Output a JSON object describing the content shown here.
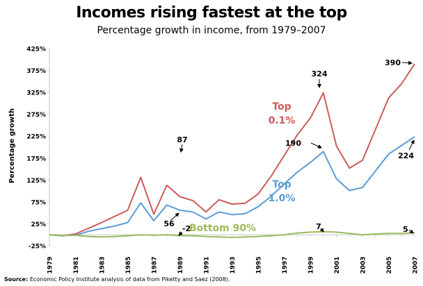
{
  "title": "Incomes rising fastest at the top",
  "subtitle": "Percentage growth in income, from 1979–2007",
  "source_label": "Source:",
  "source_text": "Economic Policy Institute analysis of data from Piketty and Saez (2008).",
  "chart_data": {
    "type": "line",
    "title": "Incomes rising fastest at the top",
    "subtitle": "Percentage growth in income, from 1979–2007",
    "xlabel": "",
    "ylabel": "Percentage growth",
    "ylim": [
      -25,
      425
    ],
    "yticks": [
      "-25%",
      "25%",
      "75%",
      "125%",
      "175%",
      "225%",
      "275%",
      "325%",
      "375%",
      "425%"
    ],
    "ytick_values": [
      -25,
      25,
      75,
      125,
      175,
      225,
      275,
      325,
      375,
      425
    ],
    "xticks": [
      "1979",
      "1981",
      "1983",
      "1985",
      "1987",
      "1989",
      "1991",
      "1993",
      "1995",
      "1997",
      "1999",
      "2001",
      "2003",
      "2005",
      "2007"
    ],
    "x": [
      1979,
      1980,
      1981,
      1982,
      1983,
      1984,
      1985,
      1986,
      1987,
      1988,
      1989,
      1990,
      1991,
      1992,
      1993,
      1994,
      1995,
      1996,
      1997,
      1998,
      1999,
      2000,
      2001,
      2002,
      2003,
      2004,
      2005,
      2006,
      2007
    ],
    "grid": false,
    "series": [
      {
        "name": "Top 0.1%",
        "label_lines": [
          "Top",
          "0.1%"
        ],
        "color": "#cc5a5a",
        "values": [
          0,
          -2,
          2,
          15,
          28,
          42,
          56,
          131,
          47,
          113,
          87,
          78,
          52,
          80,
          70,
          72,
          93,
          134,
          181,
          228,
          266,
          324,
          203,
          152,
          170,
          241,
          312,
          345,
          390
        ]
      },
      {
        "name": "Top 1.0%",
        "label_lines": [
          "Top",
          "1.0%"
        ],
        "color": "#5b9bd5",
        "values": [
          0,
          -2,
          -1,
          8,
          14,
          20,
          28,
          73,
          32,
          68,
          56,
          52,
          36,
          52,
          46,
          48,
          64,
          88,
          116,
          143,
          165,
          190,
          128,
          101,
          108,
          146,
          184,
          204,
          224
        ]
      },
      {
        "name": "Bottom 90%",
        "label_lines": [
          "Bottom 90%"
        ],
        "color": "#9bbb59",
        "values": [
          0,
          -1,
          -1,
          -4,
          -5,
          -4,
          -2,
          0,
          -1,
          0,
          -2,
          -2,
          -4,
          -5,
          -6,
          -5,
          -4,
          -2,
          0,
          4,
          6,
          7,
          6,
          3,
          0,
          2,
          3,
          3,
          5
        ]
      }
    ],
    "annotations": [
      {
        "text": "87",
        "x": 1989,
        "y": 87
      },
      {
        "text": "56",
        "x": 1989,
        "y": 56
      },
      {
        "text": "-2",
        "x": 1989,
        "y": -2
      },
      {
        "text": "324",
        "x": 2000,
        "y": 324
      },
      {
        "text": "190",
        "x": 2000,
        "y": 190
      },
      {
        "text": "7",
        "x": 2000,
        "y": 7
      },
      {
        "text": "390",
        "x": 2007,
        "y": 390
      },
      {
        "text": "224",
        "x": 2007,
        "y": 224
      },
      {
        "text": "5",
        "x": 2007,
        "y": 5
      }
    ]
  }
}
